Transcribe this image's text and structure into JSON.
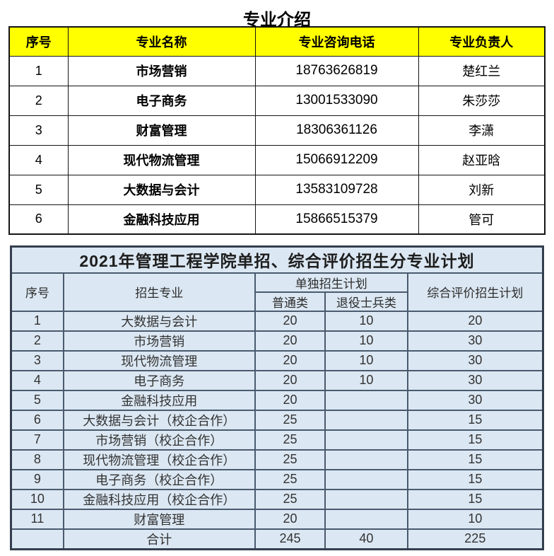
{
  "page_title": "专业介绍",
  "colors": {
    "header-yellow": "#ffff00",
    "table1-border": "#151515",
    "table2-bg": "#dbe7f2",
    "table2-border": "#4a5a6e",
    "table2-outer": "#333f4e",
    "table2-text": "#333333"
  },
  "table1": {
    "headers": [
      "序号",
      "专业名称",
      "专业咨询电话",
      "专业负责人"
    ],
    "rows": [
      [
        "1",
        "市场营销",
        "18763626819",
        "楚红兰"
      ],
      [
        "2",
        "电子商务",
        "13001533090",
        "朱莎莎"
      ],
      [
        "3",
        "财富管理",
        "18306361126",
        "李潇"
      ],
      [
        "4",
        "现代物流管理",
        "15066912209",
        "赵亚晗"
      ],
      [
        "5",
        "大数据与会计",
        "13583109728",
        "刘新"
      ],
      [
        "6",
        "金融科技应用",
        "15866515379",
        "管可"
      ]
    ]
  },
  "table2": {
    "title": "2021年管理工程学院单招、综合评价招生分专业计划",
    "header": {
      "col_seq": "序号",
      "col_major": "招生专业",
      "col_single_group": "单独招生计划",
      "col_general": "普通类",
      "col_veteran": "退役士兵类",
      "col_comprehensive": "综合评价招生计划"
    },
    "rows": [
      [
        "1",
        "大数据与会计",
        "20",
        "10",
        "20"
      ],
      [
        "2",
        "市场营销",
        "20",
        "10",
        "30"
      ],
      [
        "3",
        "现代物流管理",
        "20",
        "10",
        "30"
      ],
      [
        "4",
        "电子商务",
        "20",
        "10",
        "30"
      ],
      [
        "5",
        "金融科技应用",
        "20",
        "",
        "30"
      ],
      [
        "6",
        "大数据与会计（校企合作）",
        "25",
        "",
        "15"
      ],
      [
        "7",
        "市场营销（校企合作）",
        "25",
        "",
        "15"
      ],
      [
        "8",
        "现代物流管理（校企合作）",
        "25",
        "",
        "15"
      ],
      [
        "9",
        "电子商务（校企合作）",
        "25",
        "",
        "15"
      ],
      [
        "10",
        "金融科技应用（校企合作）",
        "25",
        "",
        "15"
      ],
      [
        "11",
        "财富管理",
        "20",
        "",
        "10"
      ],
      [
        "",
        "合计",
        "245",
        "40",
        "225"
      ]
    ]
  }
}
